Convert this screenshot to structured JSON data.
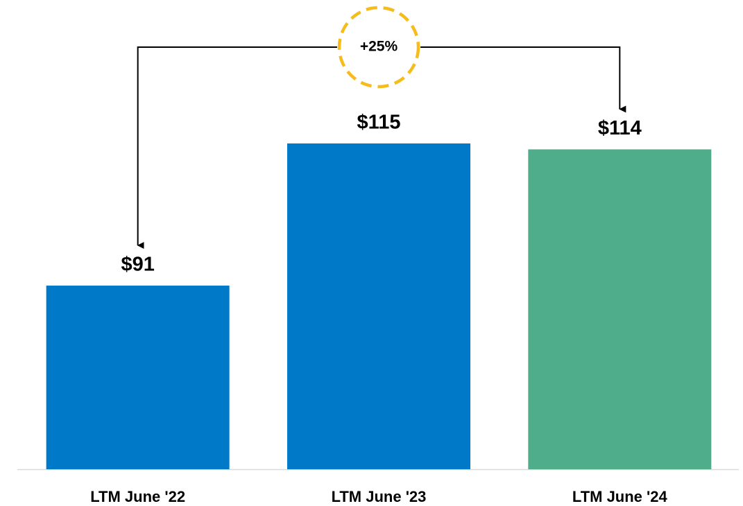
{
  "chart_data": {
    "type": "bar",
    "categories": [
      "LTM June '22",
      "LTM June '23",
      "LTM June '24"
    ],
    "values": [
      91,
      115,
      114
    ],
    "value_labels": [
      "$91",
      "$115",
      "$114"
    ],
    "colors": [
      "#0079c8",
      "#0079c8",
      "#50ad8b"
    ],
    "ylim": [
      60,
      135
    ],
    "annotation": "+25%",
    "grid": false
  }
}
